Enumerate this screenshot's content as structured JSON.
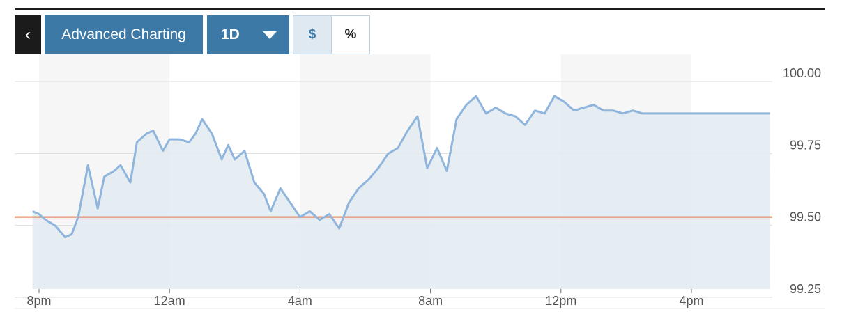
{
  "toolbar": {
    "back_label": "‹",
    "advanced_label": "Advanced Charting",
    "range_label": "1D",
    "unit_options": [
      "$",
      "%"
    ],
    "selected_unit": "$"
  },
  "colors": {
    "line": "#8fb5dc",
    "area": "#e2ebf2",
    "reference": "#e07a4f",
    "band": "#f6f6f6",
    "grid": "#dddddd",
    "button": "#3d79a6"
  },
  "chart_data": {
    "type": "area",
    "x_ticks": [
      "8pm",
      "12am",
      "4am",
      "8am",
      "12pm",
      "4pm"
    ],
    "y_ticks": [
      "100.00",
      "99.75",
      "99.50",
      "99.25"
    ],
    "ylim": [
      99.25,
      100.0
    ],
    "reference_line": 99.5,
    "x_unit": "hours since 8pm",
    "xlim": [
      -0.25,
      22.4
    ],
    "x": [
      -0.2,
      0,
      0.2,
      0.5,
      0.8,
      1.0,
      1.2,
      1.5,
      1.8,
      2.0,
      2.3,
      2.5,
      2.8,
      3.0,
      3.3,
      3.5,
      3.8,
      4.0,
      4.3,
      4.6,
      4.8,
      5.0,
      5.3,
      5.6,
      5.8,
      6.0,
      6.3,
      6.6,
      6.9,
      7.1,
      7.4,
      7.7,
      8.0,
      8.3,
      8.6,
      8.9,
      9.2,
      9.5,
      9.8,
      10.1,
      10.4,
      10.7,
      11.0,
      11.3,
      11.6,
      11.9,
      12.2,
      12.5,
      12.8,
      13.1,
      13.4,
      13.7,
      14.0,
      14.3,
      14.6,
      14.9,
      15.2,
      15.5,
      15.8,
      16.1,
      16.4,
      16.7,
      17.0,
      17.3,
      17.6,
      17.9,
      18.2,
      18.5,
      18.8,
      19.1,
      19.4,
      19.7,
      20.0,
      20.3,
      20.6,
      20.9,
      21.2,
      21.5,
      21.8,
      22.1,
      22.4
    ],
    "y": [
      99.52,
      99.51,
      99.49,
      99.47,
      99.43,
      99.44,
      99.5,
      99.68,
      99.53,
      99.64,
      99.66,
      99.68,
      99.62,
      99.76,
      99.79,
      99.8,
      99.73,
      99.77,
      99.77,
      99.76,
      99.79,
      99.84,
      99.79,
      99.7,
      99.75,
      99.7,
      99.73,
      99.62,
      99.58,
      99.52,
      99.6,
      99.55,
      99.5,
      99.52,
      99.49,
      99.51,
      99.46,
      99.55,
      99.6,
      99.63,
      99.67,
      99.72,
      99.74,
      99.8,
      99.85,
      99.67,
      99.74,
      99.66,
      99.84,
      99.89,
      99.92,
      99.86,
      99.88,
      99.86,
      99.85,
      99.82,
      99.87,
      99.86,
      99.92,
      99.9,
      99.87,
      99.88,
      99.89,
      99.87,
      99.87,
      99.86,
      99.87,
      99.86,
      99.86,
      99.86,
      99.86,
      99.86,
      99.86,
      99.86,
      99.86,
      99.86,
      99.86,
      99.86,
      99.86,
      99.86,
      99.86
    ],
    "grid": true
  }
}
